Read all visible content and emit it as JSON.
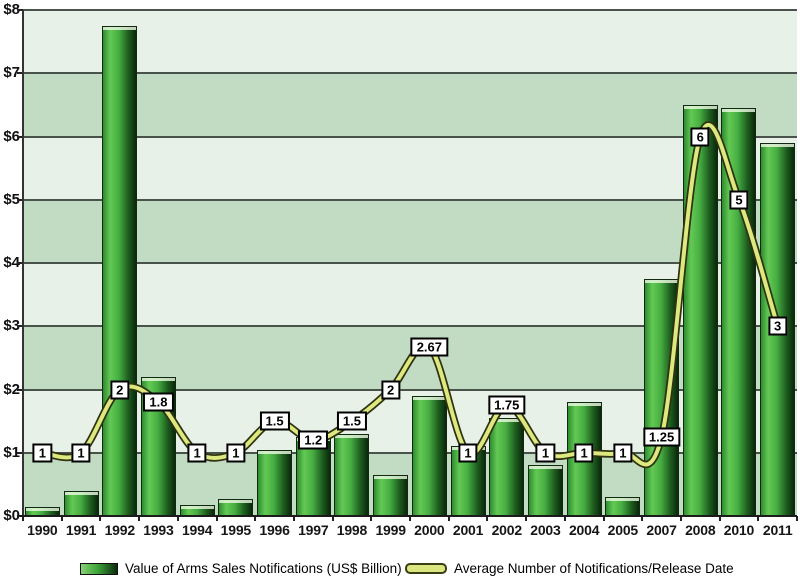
{
  "chart_data": {
    "type": "bar",
    "title": "",
    "xlabel": "",
    "ylabel": "",
    "categories": [
      "1990",
      "1991",
      "1992",
      "1993",
      "1994",
      "1995",
      "1996",
      "1997",
      "1998",
      "1999",
      "2000",
      "2001",
      "2002",
      "2003",
      "2004",
      "2005",
      "2007",
      "2008",
      "2010",
      "2011"
    ],
    "series": [
      {
        "name": "Value of Arms Sales Notifications (US$ Billion)",
        "type": "bar",
        "values": [
          0.15,
          0.4,
          7.75,
          2.2,
          0.17,
          0.27,
          1.05,
          1.25,
          1.3,
          0.65,
          1.9,
          1.1,
          1.55,
          0.8,
          1.8,
          0.3,
          3.75,
          6.5,
          6.45,
          5.9
        ]
      },
      {
        "name": "Average Number of Notifications/Release Date",
        "type": "line",
        "values": [
          1,
          1,
          2,
          1.8,
          1,
          1,
          1.5,
          1.2,
          1.5,
          2,
          2.67,
          1,
          1.75,
          1,
          1,
          1,
          1.25,
          6,
          5,
          3
        ],
        "point_labels": [
          "1",
          "1",
          "2",
          "1.8",
          "1",
          "1",
          "1.5",
          "1.2",
          "1.5",
          "2",
          "2.67",
          "1",
          "1.75",
          "1",
          "1",
          "1",
          "1.25",
          "6",
          "5",
          "3"
        ]
      }
    ],
    "ylim": [
      0,
      8
    ],
    "y_ticks": [
      "$0",
      "$1",
      "$2",
      "$3",
      "$4",
      "$5",
      "$6",
      "$7",
      "$8"
    ],
    "grid": "horizontal gridlines on, alternating horizontal bands",
    "legend_position": "bottom"
  },
  "colors": {
    "bar_green": "#46ad41",
    "bar_dark_edge": "#0a280b",
    "line_fill": "#dde87f",
    "line_outline": "#2f3310",
    "band_light": "#e7f1e8",
    "band_dark": "#c2dcc3",
    "label_box_bg": "#ffffff",
    "label_box_border": "#000000"
  }
}
